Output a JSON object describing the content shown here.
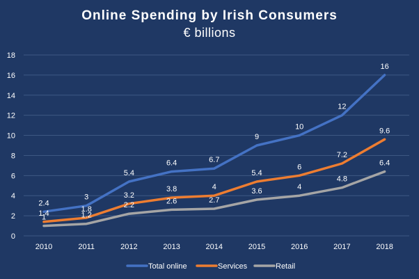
{
  "chart_data": {
    "type": "line",
    "title": "Online Spending by Irish Consumers",
    "subtitle": "€ billions",
    "xlabel": "",
    "ylabel": "",
    "x": [
      "2010",
      "2011",
      "2012",
      "2013",
      "2014",
      "2015",
      "2016",
      "2017",
      "2018"
    ],
    "ylim": [
      0,
      18
    ],
    "yticks": [
      "0",
      "2",
      "4",
      "6",
      "8",
      "10",
      "12",
      "14",
      "16",
      "18"
    ],
    "grid": true,
    "legend": "bottom",
    "series": [
      {
        "name": "Total online",
        "color": "#4472c4",
        "values": [
          2.4,
          3,
          5.4,
          6.4,
          6.7,
          9,
          10,
          12,
          16
        ],
        "labels": [
          "2.4",
          "3",
          "5.4",
          "6.4",
          "6.7",
          "9",
          "10",
          "12",
          "16"
        ]
      },
      {
        "name": "Services",
        "color": "#ed7d31",
        "values": [
          1.4,
          1.8,
          3.2,
          3.8,
          4,
          5.4,
          6,
          7.2,
          9.6
        ],
        "labels": [
          "1.4",
          "1.8",
          "3.2",
          "3.8",
          "4",
          "5.4",
          "6",
          "7.2",
          "9.6"
        ]
      },
      {
        "name": "Retail",
        "color": "#a5a5a5",
        "values": [
          1,
          1.2,
          2.2,
          2.6,
          2.7,
          3.6,
          4,
          4.8,
          6.4
        ],
        "labels": [
          "1",
          "1.2",
          "2.2",
          "2.6",
          "2.7",
          "3.6",
          "4",
          "4.8",
          "6.4"
        ]
      }
    ]
  }
}
